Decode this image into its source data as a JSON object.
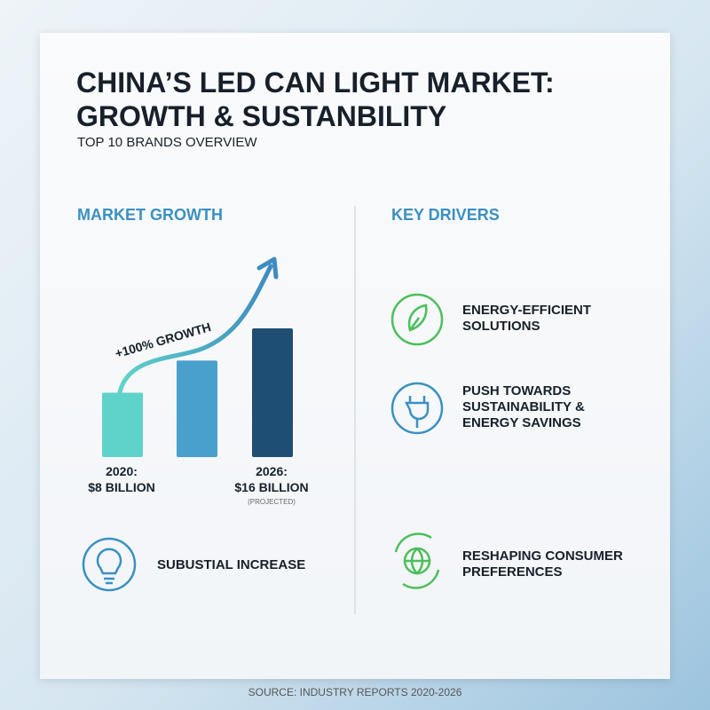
{
  "header": {
    "title": "CHINA’S LED CAN LIGHT MARKET: GROWTH & SUSTANBILITY",
    "subtitle": "TOP 10 BRANDS OVERVIEW"
  },
  "market_growth": {
    "heading": "MARKET GROWTH",
    "annotation": "+100% GROWTH",
    "bars": [
      {
        "year": "2020:",
        "label": "$8 BILLION",
        "value": 8,
        "color": "#5fd3c9"
      },
      {
        "value": 12,
        "color": "#4aa0cc"
      },
      {
        "year": "2026:",
        "label": "$16 BILLION",
        "note": "(PROJECTED)",
        "value": 16,
        "color": "#1e4e73"
      }
    ],
    "highlight": "SUBUSTIAL INCREASE"
  },
  "key_drivers": {
    "heading": "KEY DRIVERS",
    "items": [
      "ENERGY-EFFICIENT SOLUTIONS",
      "PUSH TOWARDS SUSTAINABILITY & ENERGY SAVINGS",
      "RESHAPING CONSUMER PREFERENCES"
    ]
  },
  "footer": {
    "source": "SOURCE: INDUSTRY REPORTS 2020-2026"
  }
}
